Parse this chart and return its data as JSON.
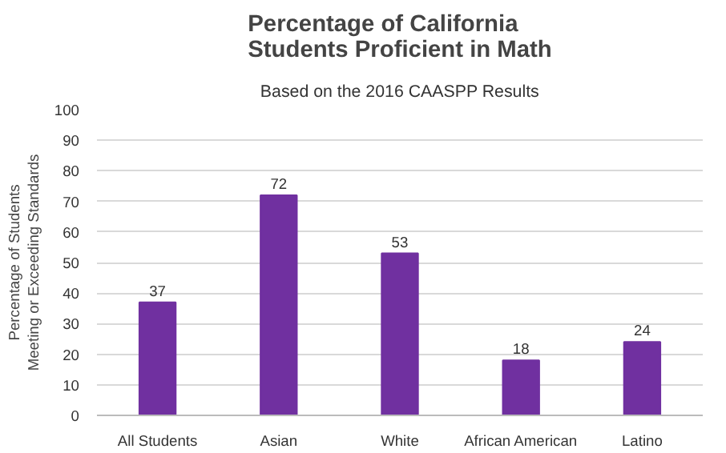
{
  "chart_data": {
    "type": "bar",
    "title": "Percentage of California Students Proficient in Math",
    "subtitle": "Based on the 2016 CAASPP Results",
    "ylabel": "Percentage of Students Meeting or Exceeding Standards",
    "categories": [
      "All Students",
      "Asian",
      "White",
      "African American",
      "Latino"
    ],
    "values": [
      37,
      72,
      53,
      18,
      24
    ],
    "color": "#7030a0",
    "ylim": [
      0,
      100
    ],
    "yticks": [
      0,
      10,
      20,
      30,
      40,
      50,
      60,
      70,
      80,
      90,
      100
    ],
    "grid": "y",
    "data_labels": true
  }
}
